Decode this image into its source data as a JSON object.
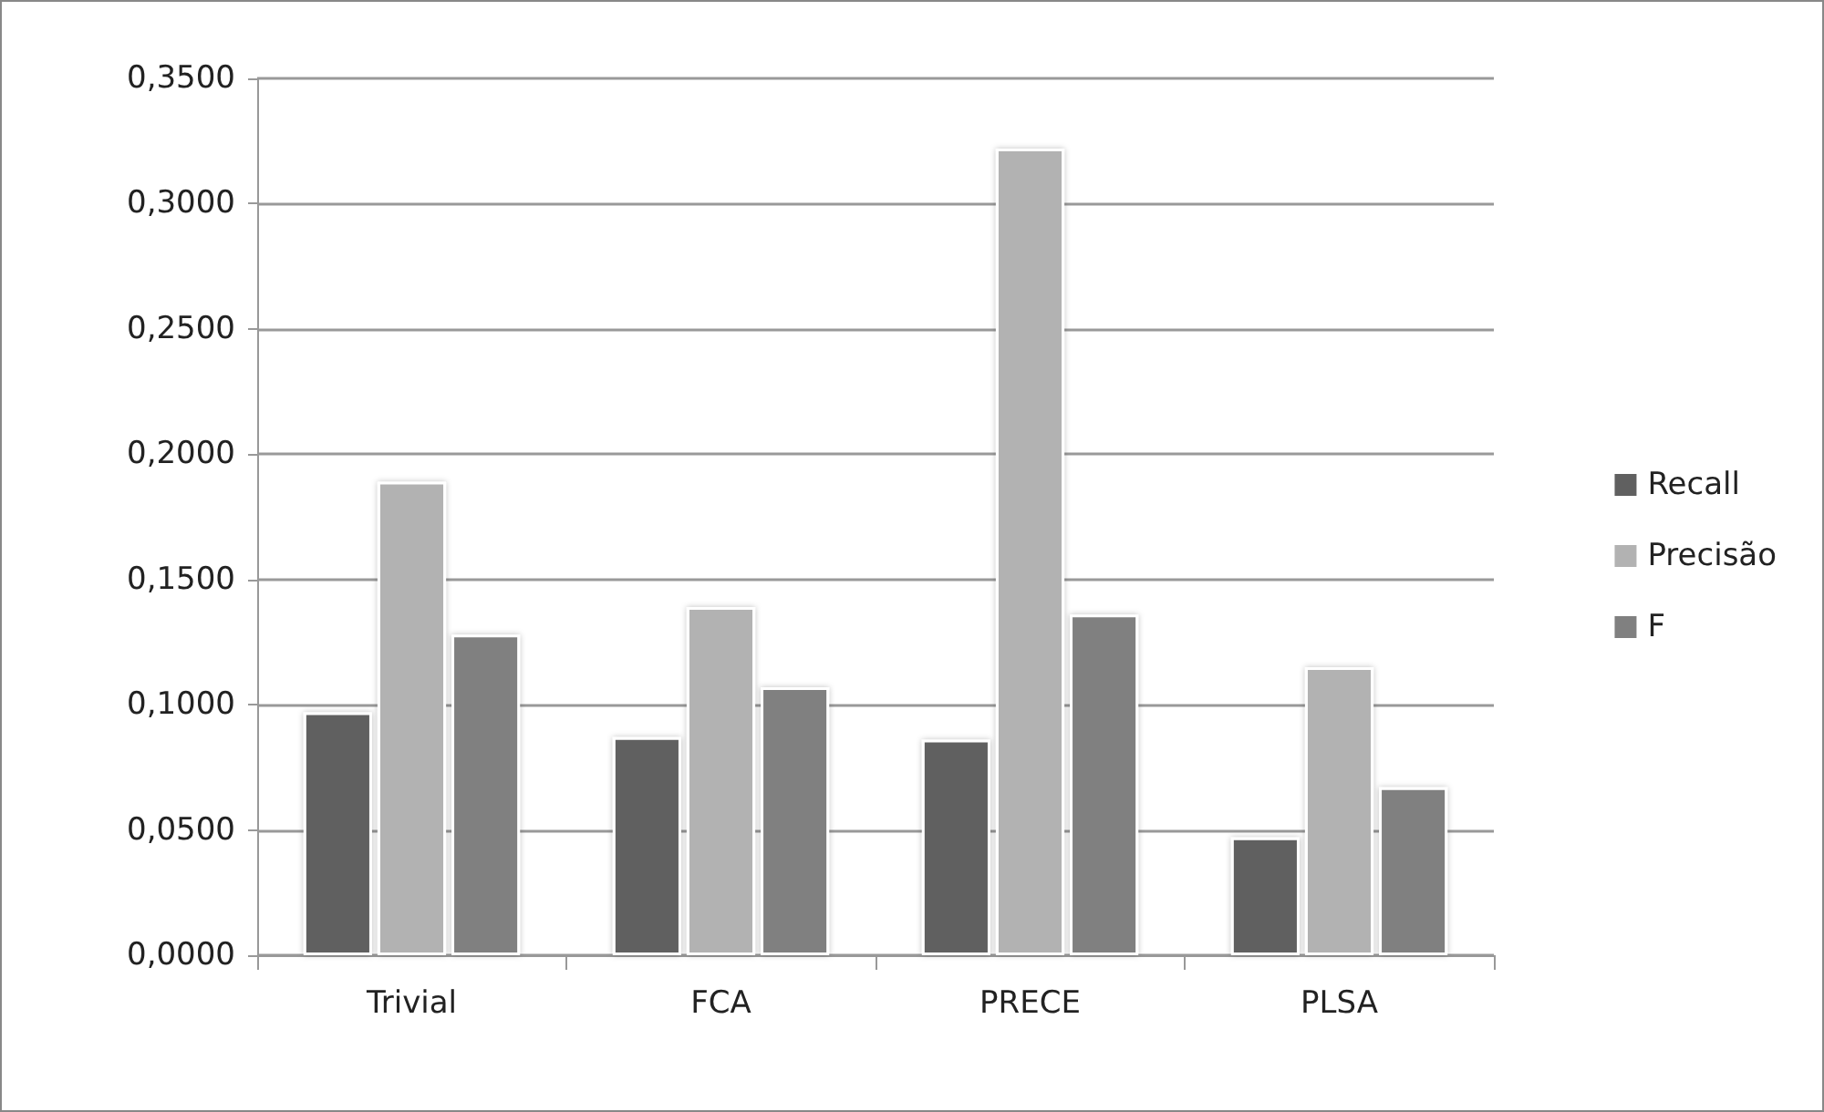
{
  "chart_data": {
    "type": "bar",
    "categories": [
      "Trivial",
      "FCA",
      "PRECE",
      "PLSA"
    ],
    "series": [
      {
        "name": "Recall",
        "color": "#606060",
        "values": [
          0.097,
          0.087,
          0.086,
          0.047
        ]
      },
      {
        "name": "Precisão",
        "color": "#b2b2b2",
        "values": [
          0.189,
          0.139,
          0.322,
          0.115
        ]
      },
      {
        "name": "F",
        "color": "#808080",
        "values": [
          0.128,
          0.107,
          0.136,
          0.067
        ]
      }
    ],
    "ylim": [
      0,
      0.35
    ],
    "yticks": [
      {
        "value": 0,
        "label": "0,0000"
      },
      {
        "value": 0.05,
        "label": "0,0500"
      },
      {
        "value": 0.1,
        "label": "0,1000"
      },
      {
        "value": 0.15,
        "label": "0,1500"
      },
      {
        "value": 0.2,
        "label": "0,2000"
      },
      {
        "value": 0.25,
        "label": "0,2500"
      },
      {
        "value": 0.3,
        "label": "0,3000"
      },
      {
        "value": 0.35,
        "label": "0,3500"
      }
    ],
    "grid": "y",
    "legend": "right"
  }
}
